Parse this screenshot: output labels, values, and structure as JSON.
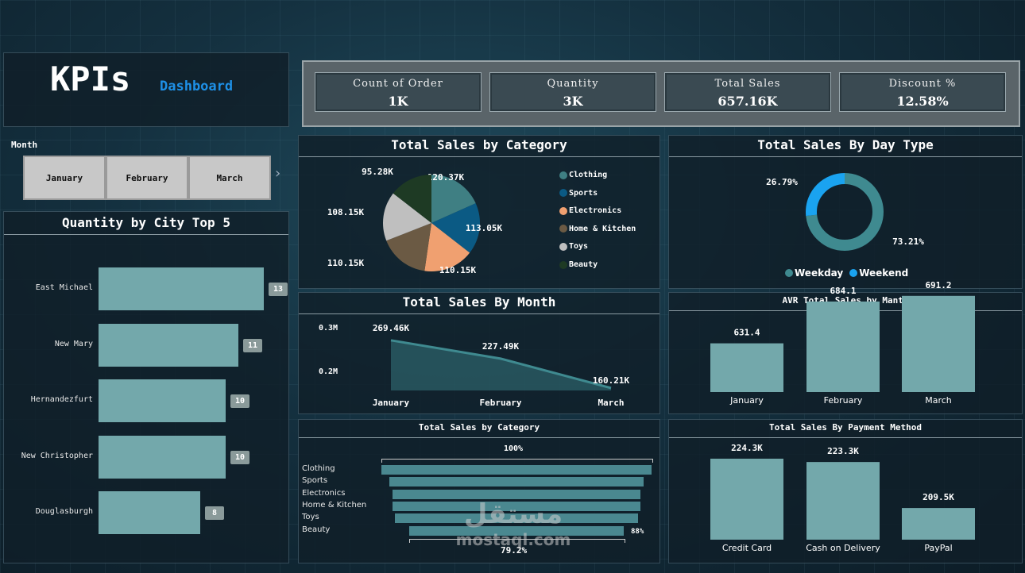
{
  "header": {
    "title": "KPIs",
    "subtitle": "Dashboard"
  },
  "kpis": [
    {
      "label": "Count of Order",
      "value": "1K"
    },
    {
      "label": "Quantity",
      "value": "3K"
    },
    {
      "label": "Total Sales",
      "value": "657.16K"
    },
    {
      "label": "Discount %",
      "value": "12.58%"
    }
  ],
  "month_filter": {
    "label": "Month",
    "options": [
      "January",
      "February",
      "March"
    ],
    "next_icon": "chevron-right-icon"
  },
  "city_chart": {
    "title": "Quantity by City Top 5",
    "chart_data": {
      "type": "bar",
      "orientation": "horizontal",
      "categories": [
        "East Michael",
        "New Mary",
        "Hernandezfurt",
        "New Christopher",
        "Douglasburgh"
      ],
      "values": [
        13,
        11,
        10,
        10,
        8
      ],
      "color": "#73a8ab"
    }
  },
  "category_pie": {
    "title": "Total Sales by Category",
    "chart_data": {
      "type": "pie",
      "categories": [
        "Clothing",
        "Sports",
        "Electronics",
        "Home & Kitchen",
        "Toys",
        "Beauty"
      ],
      "values": [
        120.37,
        113.05,
        110.15,
        110.15,
        108.15,
        95.28
      ],
      "labels": [
        "120.37K",
        "113.05K",
        "110.15K",
        "110.15K",
        "108.15K",
        "95.28K"
      ],
      "colors": [
        "#3f7f83",
        "#0b5a84",
        "#f0a070",
        "#6b5a44",
        "#bfbfbf",
        "#1e3a24"
      ],
      "legend": "right"
    }
  },
  "day_type_donut": {
    "title": "Total Sales By Day Type",
    "chart_data": {
      "type": "pie",
      "style": "donut",
      "categories": [
        "Weekday",
        "Weekend"
      ],
      "values": [
        73.21,
        26.79
      ],
      "labels": [
        "73.21%",
        "26.79%"
      ],
      "colors": [
        "#3f8a90",
        "#1aa3f0"
      ],
      "legend": "bottom"
    }
  },
  "month_line": {
    "title": "Total Sales By Month",
    "chart_data": {
      "type": "area",
      "categories": [
        "January",
        "February",
        "March"
      ],
      "values": [
        269.46,
        227.49,
        160.21
      ],
      "labels": [
        "269.46K",
        "227.49K",
        "160.21K"
      ],
      "yticks": [
        "0.3M",
        "0.2M"
      ],
      "ytick_values": [
        300,
        200
      ],
      "color": "#3f8a90"
    }
  },
  "avg_month": {
    "title": "AVR Total Sales by Manth",
    "chart_data": {
      "type": "bar",
      "categories": [
        "January",
        "February",
        "March"
      ],
      "values": [
        631.4,
        684.1,
        691.2
      ],
      "labels": [
        "631.4",
        "684.1",
        "691.2"
      ],
      "color": "#73a8ab"
    }
  },
  "category_funnel": {
    "title": "Total Sales by Category",
    "top_label": "100%",
    "bottom_label": "79.2%",
    "side_label": "88%",
    "chart_data": {
      "type": "bar",
      "style": "funnel",
      "categories": [
        "Clothing",
        "Sports",
        "Electronics",
        "Home & Kitchen",
        "Toys",
        "Beauty"
      ],
      "values": [
        120.37,
        113.05,
        110.15,
        110.15,
        108.15,
        95.28
      ],
      "color": "#4a8890"
    }
  },
  "payment": {
    "title": "Total Sales By Payment Method",
    "chart_data": {
      "type": "bar",
      "categories": [
        "Credit Card",
        "Cash on Delivery",
        "PayPal"
      ],
      "values": [
        224.3,
        223.3,
        209.5
      ],
      "labels": [
        "224.3K",
        "223.3K",
        "209.5K"
      ],
      "color": "#73a8ab"
    }
  },
  "watermark": {
    "text": "mostaql.com"
  }
}
